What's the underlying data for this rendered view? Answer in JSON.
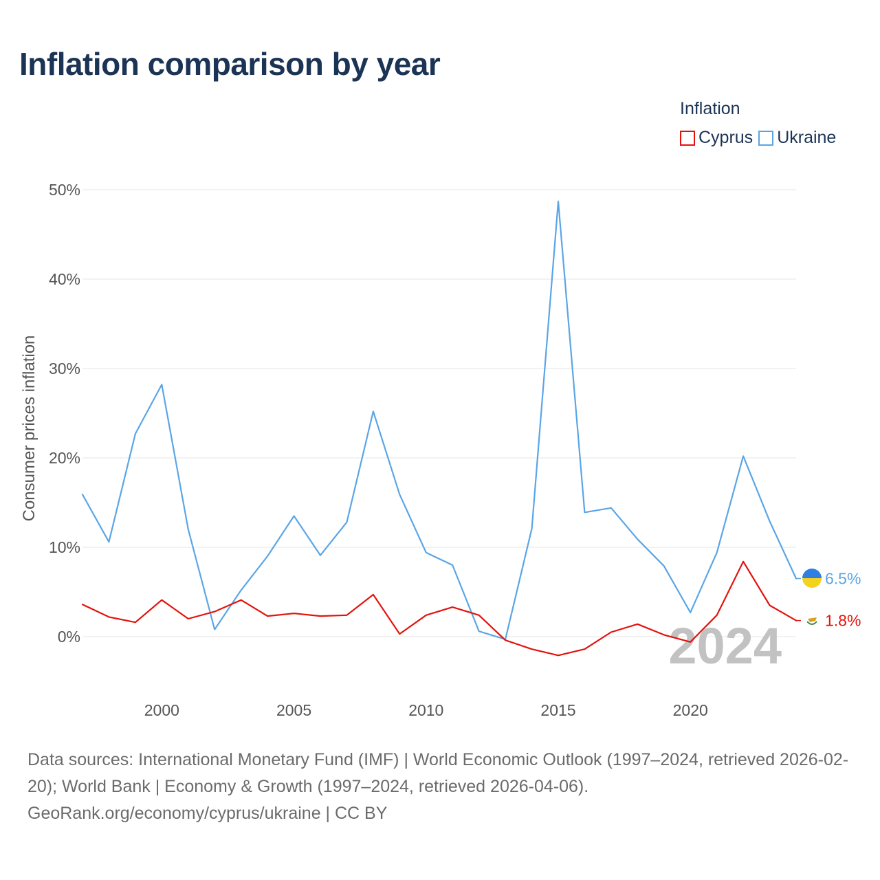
{
  "title": "Inflation comparison by year",
  "legend": {
    "title": "Inflation",
    "items": [
      {
        "label": "Cyprus",
        "color": "#e3120b"
      },
      {
        "label": "Ukraine",
        "color": "#5aa5e6"
      }
    ]
  },
  "chart_data": {
    "type": "line",
    "x": [
      1997,
      1998,
      1999,
      2000,
      2001,
      2002,
      2003,
      2004,
      2005,
      2006,
      2007,
      2008,
      2009,
      2010,
      2011,
      2012,
      2013,
      2014,
      2015,
      2016,
      2017,
      2018,
      2019,
      2020,
      2021,
      2022,
      2023,
      2024
    ],
    "series": [
      {
        "name": "Cyprus",
        "color": "#e3120b",
        "end_label": "1.8%",
        "values": [
          3.6,
          2.2,
          1.6,
          4.1,
          2.0,
          2.8,
          4.1,
          2.3,
          2.6,
          2.3,
          2.4,
          4.7,
          0.3,
          2.4,
          3.3,
          2.4,
          -0.4,
          -1.4,
          -2.1,
          -1.4,
          0.5,
          1.4,
          0.2,
          -0.6,
          2.4,
          8.4,
          3.5,
          1.8
        ]
      },
      {
        "name": "Ukraine",
        "color": "#5aa5e6",
        "end_label": "6.5%",
        "values": [
          15.9,
          10.6,
          22.7,
          28.2,
          12.0,
          0.8,
          5.2,
          9.0,
          13.5,
          9.1,
          12.8,
          25.2,
          15.9,
          9.4,
          8.0,
          0.6,
          -0.3,
          12.1,
          48.7,
          13.9,
          14.4,
          10.9,
          7.9,
          2.7,
          9.4,
          20.2,
          12.9,
          6.5
        ]
      }
    ],
    "xticks": [
      2000,
      2005,
      2010,
      2015,
      2020
    ],
    "yticks": [
      0,
      10,
      20,
      30,
      40,
      50
    ],
    "ytick_labels": [
      "0%",
      "10%",
      "20%",
      "30%",
      "40%",
      "50%"
    ],
    "xlim": [
      1997,
      2024
    ],
    "ylim": [
      -6.5,
      50
    ],
    "ylabel": "Consumer prices inflation",
    "xlabel": "",
    "grid": true,
    "legend_position": "top-right",
    "year_watermark": "2024"
  },
  "footer": {
    "sources": "Data sources: International Monetary Fund (IMF) | World Economic Outlook (1997–2024, retrieved 2026-02-20); World Bank | Economy & Growth (1997–2024, retrieved 2026-04-06).",
    "attribution": "GeoRank.org/economy/cyprus/ukraine | CC BY"
  }
}
